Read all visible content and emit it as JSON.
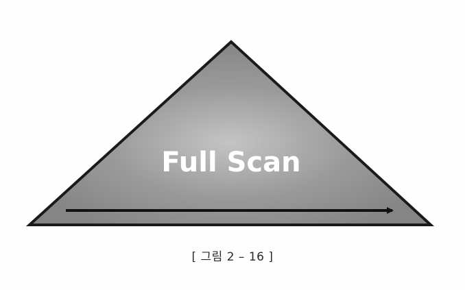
{
  "diagram": {
    "label": "Full Scan",
    "colors": {
      "fill": "#8a8a8a",
      "fill_light": "#bdbdbd",
      "stroke": "#1a1a1a",
      "label": "#ffffff"
    }
  },
  "caption": "[ 그림 2 – 16 ]"
}
